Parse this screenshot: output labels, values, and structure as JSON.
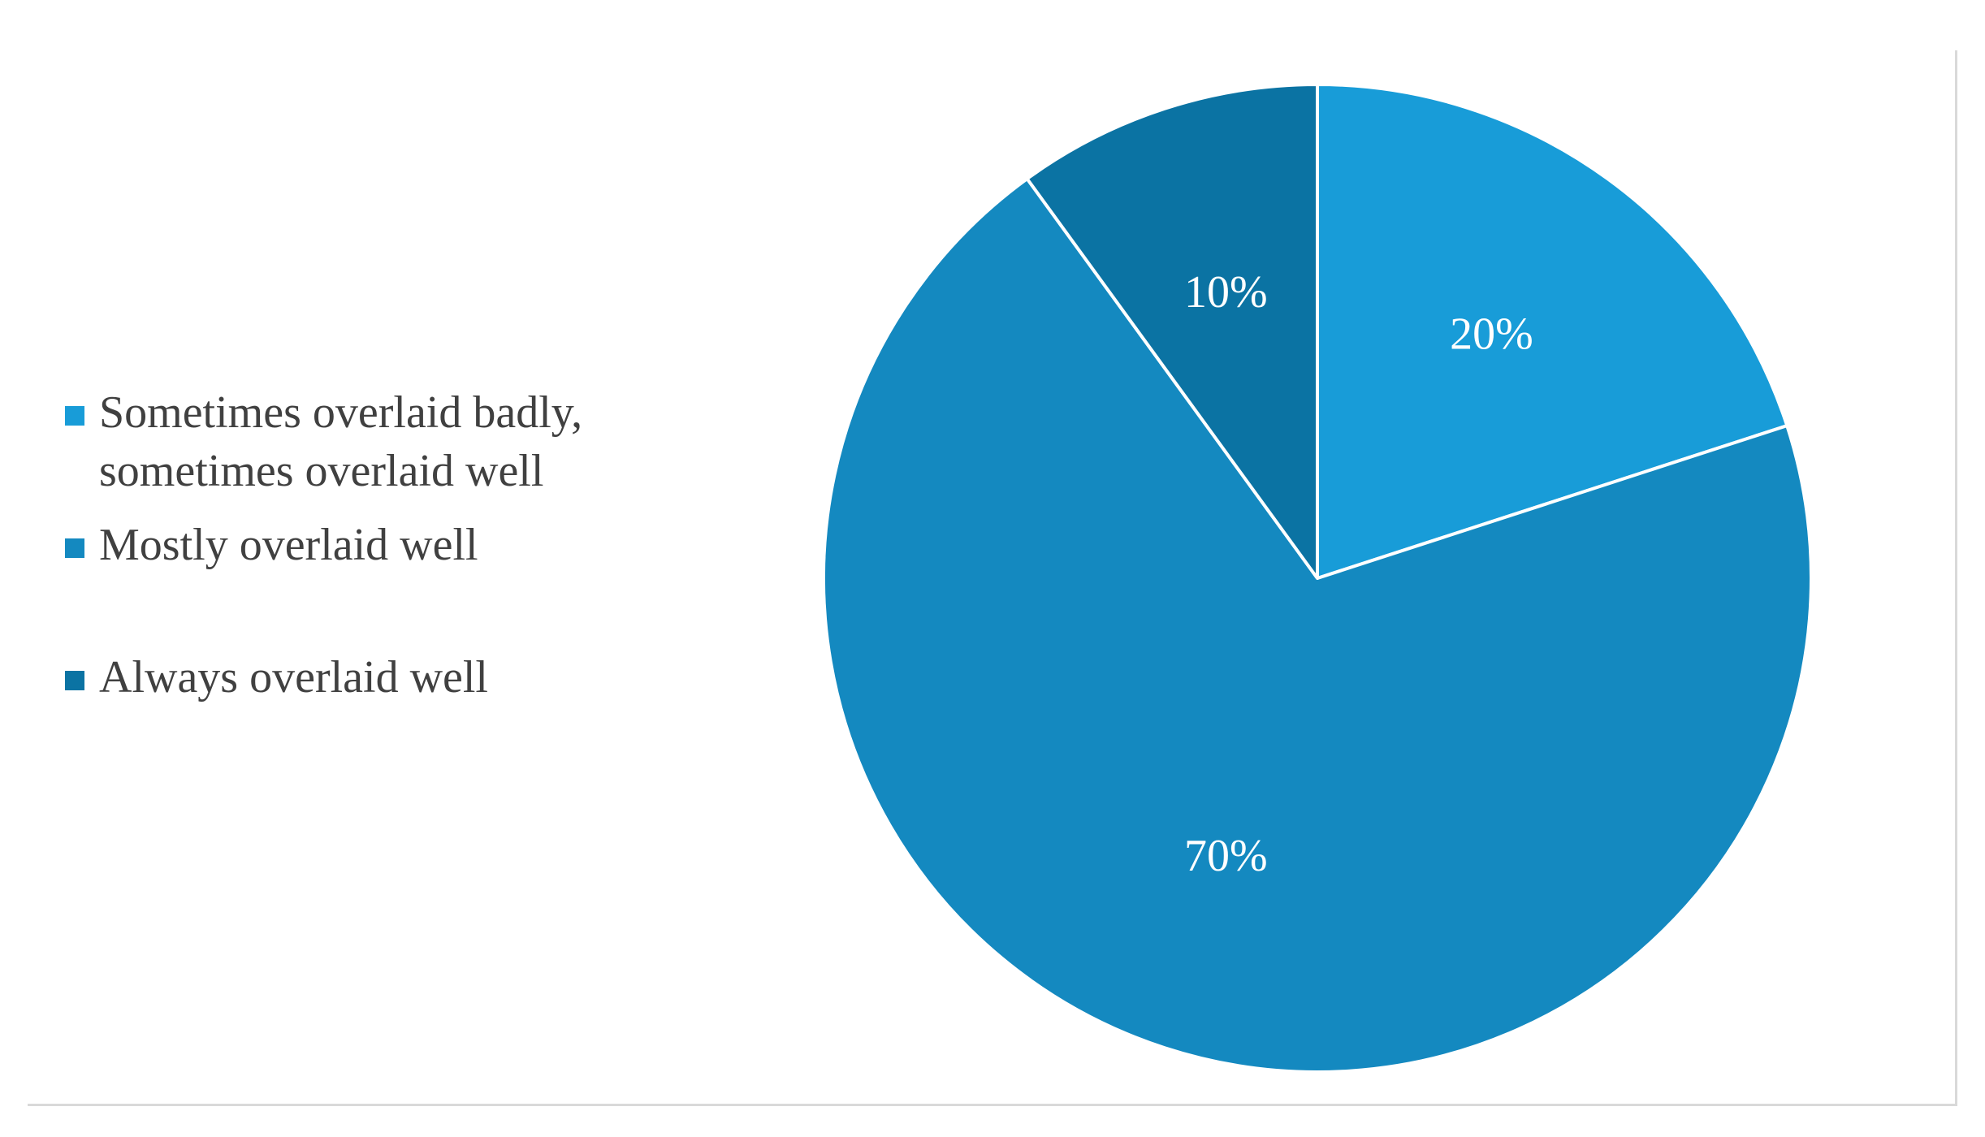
{
  "chart_data": {
    "type": "pie",
    "title": "",
    "categories": [
      "Sometimes overlaid badly, sometimes overlaid well",
      "Mostly overlaid well",
      "Always overlaid well"
    ],
    "values": [
      20,
      70,
      10
    ],
    "data_labels": [
      "20%",
      "70%",
      "10%"
    ],
    "colors": [
      "#189cd8",
      "#1489c0",
      "#0b73a3"
    ],
    "slice_border_color": "#ffffff",
    "start_angle_deg": 0,
    "direction": "clockwise",
    "legend_position": "left",
    "legend": {
      "items": [
        {
          "label": "Sometimes overlaid badly,\nsometimes overlaid well",
          "color": "#189cd8"
        },
        {
          "label": "Mostly overlaid well",
          "color": "#1489c0"
        },
        {
          "label": "Always overlaid well",
          "color": "#0b73a3"
        }
      ]
    }
  }
}
